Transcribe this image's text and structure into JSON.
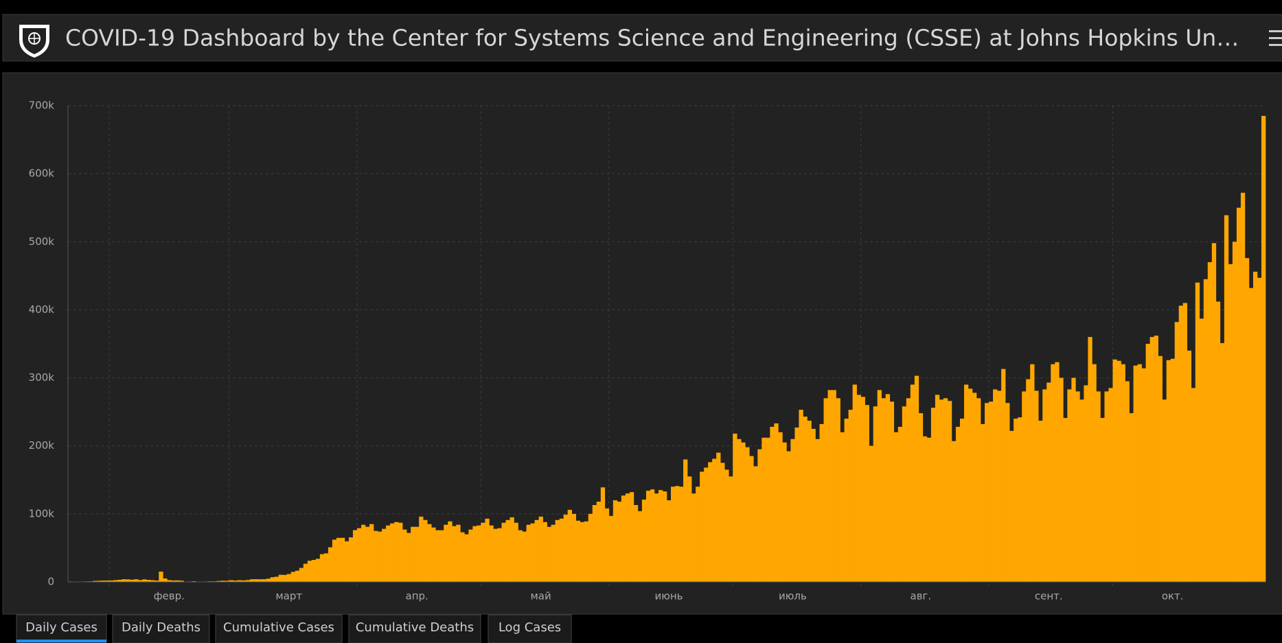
{
  "header": {
    "title": "COVID-19 Dashboard by the Center for Systems Science and Engineering (CSSE) at Johns Hopkins Un…"
  },
  "tabs": [
    "Daily Cases",
    "Daily Deaths",
    "Cumulative Cases",
    "Cumulative Deaths",
    "Log Cases"
  ],
  "chart_data": {
    "type": "bar",
    "color": "#ffa700",
    "grid": true,
    "ylim": [
      0,
      700000
    ],
    "yticks": [
      0,
      {
        "value": 100000,
        "label": "100k"
      },
      {
        "value": 200000,
        "label": "200k"
      },
      {
        "value": 300000,
        "label": "300k"
      },
      {
        "value": 400000,
        "label": "400k"
      },
      {
        "value": 500000,
        "label": "500k"
      },
      {
        "value": 600000,
        "label": "600k"
      },
      {
        "value": 700000,
        "label": "700k"
      }
    ],
    "categories": [
      null,
      null,
      null,
      null,
      null,
      null,
      null,
      null,
      null,
      null,
      null,
      null,
      null,
      null,
      null,
      null,
      null,
      null,
      null,
      null,
      null,
      null,
      null,
      null,
      "февр.",
      null,
      null,
      null,
      null,
      null,
      null,
      null,
      null,
      null,
      null,
      null,
      null,
      null,
      null,
      null,
      null,
      null,
      null,
      null,
      null,
      null,
      null,
      null,
      null,
      null,
      null,
      null,
      null,
      "март",
      null,
      null,
      null,
      null,
      null,
      null,
      null,
      null,
      null,
      null,
      null,
      null,
      null,
      null,
      null,
      null,
      null,
      null,
      null,
      null,
      null,
      null,
      null,
      null,
      null,
      null,
      null,
      null,
      null,
      null,
      "апр.",
      null,
      null,
      null,
      null,
      null,
      null,
      null,
      null,
      null,
      null,
      null,
      null,
      null,
      null,
      null,
      null,
      null,
      null,
      null,
      null,
      null,
      null,
      null,
      null,
      null,
      null,
      null,
      null,
      null,
      "май",
      null,
      null,
      null,
      null,
      null,
      null,
      null,
      null,
      null,
      null,
      null,
      null,
      null,
      null,
      null,
      null,
      null,
      null,
      null,
      null,
      null,
      null,
      null,
      null,
      null,
      null,
      null,
      null,
      null,
      null,
      "июнь",
      null,
      null,
      null,
      null,
      null,
      null,
      null,
      null,
      null,
      null,
      null,
      null,
      null,
      null,
      null,
      null,
      null,
      null,
      null,
      null,
      null,
      null,
      null,
      null,
      null,
      null,
      null,
      null,
      null,
      "июль",
      null,
      null,
      null,
      null,
      null,
      null,
      null,
      null,
      null,
      null,
      null,
      null,
      null,
      null,
      null,
      null,
      null,
      null,
      null,
      null,
      null,
      null,
      null,
      null,
      null,
      null,
      null,
      null,
      null,
      null,
      "авг.",
      null,
      null,
      null,
      null,
      null,
      null,
      null,
      null,
      null,
      null,
      null,
      null,
      null,
      null,
      null,
      null,
      null,
      null,
      null,
      null,
      null,
      null,
      null,
      null,
      null,
      null,
      null,
      null,
      null,
      null,
      "сент.",
      null,
      null,
      null,
      null,
      null,
      null,
      null,
      null,
      null,
      null,
      null,
      null,
      null,
      null,
      null,
      null,
      null,
      null,
      null,
      null,
      null,
      null,
      null,
      null,
      null,
      null,
      null,
      null,
      null,
      "окт.",
      null,
      null,
      null,
      null,
      null,
      null,
      null,
      null,
      null,
      null,
      null,
      null,
      null,
      null,
      null,
      null,
      null,
      null,
      null,
      null,
      null,
      null
    ],
    "values": [
      600,
      100,
      300,
      500,
      700,
      800,
      1500,
      1700,
      2000,
      2000,
      2100,
      2600,
      3100,
      3900,
      3700,
      3200,
      3900,
      2700,
      3700,
      3000,
      2500,
      2000,
      15200,
      5100,
      2600,
      2100,
      2200,
      1900,
      500,
      600,
      1000,
      300,
      500,
      600,
      900,
      900,
      1400,
      1800,
      1700,
      2500,
      2000,
      2500,
      2200,
      2700,
      3900,
      4000,
      3900,
      4000,
      4800,
      6900,
      7600,
      10500,
      10300,
      11600,
      14800,
      16500,
      20600,
      26700,
      31100,
      32300,
      34000,
      40800,
      42000,
      50900,
      62100,
      64700,
      64800,
      59700,
      65500,
      76100,
      79000,
      84000,
      81000,
      85000,
      75000,
      74000,
      78000,
      83000,
      86000,
      88000,
      87000,
      77000,
      72000,
      81000,
      81000,
      96000,
      91000,
      85000,
      80000,
      76000,
      76000,
      84000,
      89000,
      82000,
      84000,
      73000,
      70000,
      77000,
      82000,
      83000,
      87000,
      93000,
      83000,
      78000,
      79000,
      87000,
      91000,
      95000,
      87000,
      76000,
      74000,
      84000,
      86000,
      91000,
      96000,
      88000,
      81000,
      84000,
      91000,
      93000,
      99000,
      106000,
      100000,
      90000,
      88000,
      89000,
      100000,
      113000,
      118000,
      139000,
      108000,
      97000,
      120000,
      118000,
      127000,
      130000,
      132000,
      113000,
      104000,
      121000,
      134000,
      136000,
      130000,
      135000,
      133000,
      120000,
      140000,
      141000,
      140000,
      180000,
      155000,
      130000,
      140000,
      162000,
      168000,
      176000,
      181000,
      190000,
      175000,
      165000,
      155000,
      218000,
      210000,
      205000,
      198000,
      185000,
      170000,
      195000,
      212000,
      212000,
      228000,
      233000,
      220000,
      205000,
      192000,
      210000,
      227000,
      253000,
      243000,
      237000,
      225000,
      210000,
      232000,
      270000,
      282000,
      282000,
      270000,
      220000,
      240000,
      253000,
      290000,
      275000,
      272000,
      260000,
      200000,
      258000,
      282000,
      270000,
      276000,
      265000,
      220000,
      228000,
      258000,
      270000,
      290000,
      303000,
      248000,
      214000,
      212000,
      256000,
      275000,
      268000,
      270000,
      266000,
      207000,
      228000,
      240000,
      290000,
      284000,
      278000,
      270000,
      232000,
      263000,
      265000,
      283000,
      281000,
      313000,
      263000,
      222000,
      240000,
      242000,
      280000,
      298000,
      320000,
      281000,
      237000,
      283000,
      293000,
      320000,
      323000,
      300000,
      241000,
      283000,
      300000,
      280000,
      268000,
      289000,
      360000,
      320000,
      280000,
      241000,
      280000,
      285000,
      327000,
      325000,
      320000,
      295000,
      248000,
      318000,
      320000,
      314000,
      350000,
      360000,
      362000,
      332000,
      268000,
      326000,
      328000,
      382000,
      406000,
      410000,
      340000,
      285000,
      440000,
      387000,
      445000,
      470000,
      498000,
      412000,
      351000,
      539000,
      467000,
      500000,
      550000,
      572000,
      476000,
      432000,
      456000,
      447000,
      685000
    ]
  }
}
